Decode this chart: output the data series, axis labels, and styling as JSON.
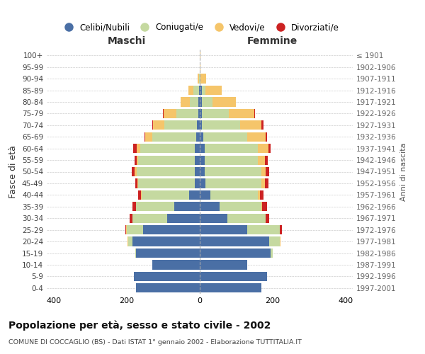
{
  "age_groups": [
    "0-4",
    "5-9",
    "10-14",
    "15-19",
    "20-24",
    "25-29",
    "30-34",
    "35-39",
    "40-44",
    "45-49",
    "50-54",
    "55-59",
    "60-64",
    "65-69",
    "70-74",
    "75-79",
    "80-84",
    "85-89",
    "90-94",
    "95-99",
    "100+"
  ],
  "birth_years": [
    "1997-2001",
    "1992-1996",
    "1987-1991",
    "1982-1986",
    "1977-1981",
    "1972-1976",
    "1967-1971",
    "1962-1966",
    "1957-1961",
    "1952-1956",
    "1947-1951",
    "1942-1946",
    "1937-1941",
    "1932-1936",
    "1927-1931",
    "1922-1926",
    "1917-1921",
    "1912-1916",
    "1907-1911",
    "1902-1906",
    "≤ 1901"
  ],
  "male_celibe": [
    175,
    180,
    130,
    175,
    185,
    155,
    90,
    70,
    30,
    14,
    14,
    14,
    14,
    10,
    8,
    4,
    3,
    2,
    0,
    0,
    0
  ],
  "male_coniugato": [
    0,
    0,
    0,
    2,
    12,
    45,
    95,
    105,
    130,
    155,
    160,
    155,
    150,
    120,
    90,
    60,
    25,
    15,
    2,
    0,
    0
  ],
  "male_vedovo": [
    0,
    0,
    0,
    0,
    2,
    3,
    0,
    0,
    2,
    3,
    5,
    5,
    10,
    20,
    30,
    35,
    25,
    15,
    4,
    0,
    0
  ],
  "male_divorziato": [
    0,
    0,
    0,
    0,
    0,
    2,
    8,
    10,
    8,
    5,
    8,
    5,
    8,
    2,
    2,
    2,
    0,
    0,
    0,
    0,
    0
  ],
  "female_celibe": [
    170,
    185,
    130,
    195,
    190,
    130,
    75,
    55,
    30,
    15,
    14,
    14,
    14,
    10,
    5,
    5,
    5,
    5,
    0,
    0,
    0
  ],
  "female_coniugato": [
    0,
    0,
    0,
    5,
    30,
    90,
    105,
    115,
    130,
    155,
    155,
    145,
    145,
    120,
    105,
    75,
    30,
    10,
    2,
    0,
    0
  ],
  "female_vedovo": [
    0,
    0,
    0,
    0,
    2,
    0,
    0,
    2,
    5,
    8,
    12,
    20,
    30,
    50,
    60,
    70,
    65,
    45,
    15,
    2,
    1
  ],
  "female_divorziato": [
    0,
    0,
    0,
    0,
    0,
    5,
    10,
    12,
    10,
    10,
    10,
    8,
    5,
    5,
    5,
    2,
    0,
    0,
    0,
    0,
    0
  ],
  "color_celibe": "#4a6fa5",
  "color_coniugato": "#c5d9a0",
  "color_vedovo": "#f5c56a",
  "color_divorziato": "#cc2222",
  "xlim": 420,
  "title": "Popolazione per età, sesso e stato civile - 2002",
  "subtitle": "COMUNE DI COCCAGLIO (BS) - Dati ISTAT 1° gennaio 2002 - Elaborazione TUTTITALIA.IT",
  "ylabel": "Fasce di età",
  "ylabel_right": "Anni di nascita",
  "label_maschi": "Maschi",
  "label_femmine": "Femmine",
  "legend_celibe": "Celibi/Nubili",
  "legend_coniugato": "Coniugati/e",
  "legend_vedovo": "Vedovi/e",
  "legend_divorziato": "Divorziati/e",
  "bg_color": "#ffffff",
  "grid_color": "#cccccc"
}
